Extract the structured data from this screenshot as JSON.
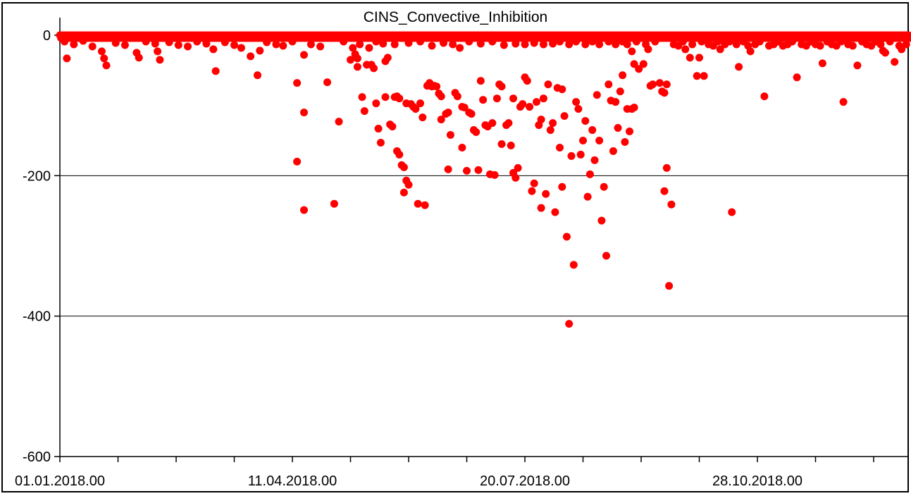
{
  "chart_data": {
    "type": "scatter",
    "title": "CINS_Convective_Inhibition",
    "marker": {
      "color": "#ff0000",
      "radius": 5.5
    },
    "background_color": "#ffffff",
    "frame_color": "#000000",
    "grid": "horizontal-only",
    "legend": "none",
    "x_axis": {
      "labels": [
        "01.01.2018.00",
        "11.04.2018.00",
        "20.07.2018.00",
        "28.10.2018.00"
      ],
      "label_days": [
        0,
        100,
        200,
        300
      ],
      "minor_tick_interval_days": 25,
      "range_days": [
        0,
        365
      ]
    },
    "y_axis": {
      "tick_labels": [
        "0",
        "-200",
        "-400",
        "-600"
      ],
      "ticks": [
        0,
        -200,
        -400,
        -600
      ],
      "gridlines": [
        -200,
        -400
      ],
      "range": [
        -600,
        0
      ]
    },
    "zero_band": {
      "note": "continuous dense row of overlapping points at ~0 for the whole period",
      "day_start": 0,
      "day_end": 365,
      "step_days": 1,
      "row_values": [
        0,
        -4
      ]
    },
    "points": [
      [
        2,
        -9
      ],
      [
        3,
        -33
      ],
      [
        6,
        -13
      ],
      [
        10,
        -8
      ],
      [
        14,
        -16
      ],
      [
        18,
        -23
      ],
      [
        19,
        -33
      ],
      [
        20,
        -43
      ],
      [
        24,
        -11
      ],
      [
        28,
        -14
      ],
      [
        33,
        -25
      ],
      [
        34,
        -32
      ],
      [
        37,
        -9
      ],
      [
        41,
        -12
      ],
      [
        42,
        -23
      ],
      [
        43,
        -35
      ],
      [
        47,
        -10
      ],
      [
        51,
        -14
      ],
      [
        55,
        -16
      ],
      [
        59,
        -9
      ],
      [
        63,
        -12
      ],
      [
        66,
        -20
      ],
      [
        67,
        -51
      ],
      [
        71,
        -10
      ],
      [
        75,
        -14
      ],
      [
        78,
        -18
      ],
      [
        82,
        -30
      ],
      [
        85,
        -57
      ],
      [
        86,
        -22
      ],
      [
        89,
        -10
      ],
      [
        93,
        -13
      ],
      [
        96,
        -15
      ],
      [
        100,
        -9
      ],
      [
        102,
        -68
      ],
      [
        102,
        -180
      ],
      [
        105,
        -28
      ],
      [
        105,
        -110
      ],
      [
        105,
        -249
      ],
      [
        108,
        -13
      ],
      [
        112,
        -16
      ],
      [
        115,
        -67
      ],
      [
        118,
        -240
      ],
      [
        120,
        -123
      ],
      [
        122,
        -9
      ],
      [
        125,
        -35
      ],
      [
        126,
        -18
      ],
      [
        127,
        -27
      ],
      [
        128,
        -33
      ],
      [
        128,
        -45
      ],
      [
        129,
        -13
      ],
      [
        130,
        -88
      ],
      [
        131,
        -108
      ],
      [
        132,
        -42
      ],
      [
        133,
        -18
      ],
      [
        134,
        -42
      ],
      [
        135,
        -47
      ],
      [
        136,
        -97
      ],
      [
        136,
        -9
      ],
      [
        137,
        -133
      ],
      [
        138,
        -153
      ],
      [
        139,
        -12
      ],
      [
        140,
        -37
      ],
      [
        140,
        -88
      ],
      [
        141,
        -32
      ],
      [
        142,
        -127
      ],
      [
        143,
        -130
      ],
      [
        144,
        -88
      ],
      [
        144,
        -13
      ],
      [
        145,
        -87
      ],
      [
        145,
        -165
      ],
      [
        146,
        -90
      ],
      [
        146,
        -170
      ],
      [
        147,
        -185
      ],
      [
        148,
        -188
      ],
      [
        148,
        -224
      ],
      [
        149,
        -207
      ],
      [
        149,
        -97
      ],
      [
        150,
        -213
      ],
      [
        150,
        -11
      ],
      [
        151,
        -98
      ],
      [
        152,
        -102
      ],
      [
        153,
        -105
      ],
      [
        154,
        -240
      ],
      [
        155,
        -97
      ],
      [
        155,
        -9
      ],
      [
        156,
        -117
      ],
      [
        157,
        -242
      ],
      [
        158,
        -72
      ],
      [
        159,
        -68
      ],
      [
        160,
        -15
      ],
      [
        160,
        -73
      ],
      [
        161,
        -72
      ],
      [
        162,
        -73
      ],
      [
        163,
        -83
      ],
      [
        164,
        -87
      ],
      [
        164,
        -120
      ],
      [
        165,
        -11
      ],
      [
        166,
        -112
      ],
      [
        167,
        -110
      ],
      [
        167,
        -191
      ],
      [
        168,
        -142
      ],
      [
        169,
        -13
      ],
      [
        170,
        -82
      ],
      [
        171,
        -87
      ],
      [
        172,
        -18
      ],
      [
        173,
        -102
      ],
      [
        173,
        -160
      ],
      [
        174,
        -103
      ],
      [
        175,
        -193
      ],
      [
        176,
        -110
      ],
      [
        176,
        -9
      ],
      [
        177,
        -112
      ],
      [
        178,
        -135
      ],
      [
        179,
        -138
      ],
      [
        180,
        -192
      ],
      [
        181,
        -65
      ],
      [
        181,
        -12
      ],
      [
        182,
        -92
      ],
      [
        183,
        -128
      ],
      [
        184,
        -130
      ],
      [
        185,
        -198
      ],
      [
        186,
        -125
      ],
      [
        186,
        -9
      ],
      [
        187,
        -199
      ],
      [
        188,
        -90
      ],
      [
        189,
        -70
      ],
      [
        190,
        -73
      ],
      [
        190,
        -155
      ],
      [
        191,
        -14
      ],
      [
        192,
        -128
      ],
      [
        193,
        -125
      ],
      [
        194,
        -157
      ],
      [
        195,
        -90
      ],
      [
        195,
        -196
      ],
      [
        196,
        -203
      ],
      [
        196,
        -12
      ],
      [
        197,
        -189
      ],
      [
        198,
        -102
      ],
      [
        199,
        -98
      ],
      [
        200,
        -60
      ],
      [
        200,
        -13
      ],
      [
        201,
        -65
      ],
      [
        202,
        -102
      ],
      [
        203,
        -222
      ],
      [
        204,
        -211
      ],
      [
        204,
        -11
      ],
      [
        205,
        -95
      ],
      [
        206,
        -128
      ],
      [
        207,
        -120
      ],
      [
        207,
        -246
      ],
      [
        208,
        -90
      ],
      [
        208,
        -13
      ],
      [
        209,
        -226
      ],
      [
        210,
        -70
      ],
      [
        211,
        -135
      ],
      [
        212,
        -125
      ],
      [
        212,
        -12
      ],
      [
        213,
        -252
      ],
      [
        214,
        -75
      ],
      [
        215,
        -160
      ],
      [
        215,
        -9
      ],
      [
        216,
        -77
      ],
      [
        216,
        -216
      ],
      [
        217,
        -115
      ],
      [
        218,
        -287
      ],
      [
        219,
        -411
      ],
      [
        219,
        -13
      ],
      [
        220,
        -172
      ],
      [
        221,
        -327
      ],
      [
        222,
        -95
      ],
      [
        222,
        -9
      ],
      [
        223,
        -105
      ],
      [
        224,
        -170
      ],
      [
        225,
        -150
      ],
      [
        226,
        -122
      ],
      [
        226,
        -13
      ],
      [
        227,
        -230
      ],
      [
        228,
        -198
      ],
      [
        229,
        -135
      ],
      [
        229,
        -9
      ],
      [
        230,
        -178
      ],
      [
        231,
        -85
      ],
      [
        232,
        -150
      ],
      [
        232,
        -13
      ],
      [
        233,
        -264
      ],
      [
        234,
        -216
      ],
      [
        235,
        -314
      ],
      [
        236,
        -70
      ],
      [
        236,
        -9
      ],
      [
        237,
        -93
      ],
      [
        238,
        -165
      ],
      [
        239,
        -95
      ],
      [
        239,
        -13
      ],
      [
        240,
        -132
      ],
      [
        241,
        -80
      ],
      [
        242,
        -57
      ],
      [
        242,
        -9
      ],
      [
        243,
        -152
      ],
      [
        244,
        -105
      ],
      [
        244,
        -13
      ],
      [
        245,
        -137
      ],
      [
        246,
        -105
      ],
      [
        246,
        -23
      ],
      [
        247,
        -103
      ],
      [
        247,
        -41
      ],
      [
        248,
        -9
      ],
      [
        249,
        -48
      ],
      [
        251,
        -41
      ],
      [
        252,
        -13
      ],
      [
        253,
        -20
      ],
      [
        254,
        -72
      ],
      [
        255,
        -70
      ],
      [
        256,
        -9
      ],
      [
        258,
        -68
      ],
      [
        259,
        -80
      ],
      [
        260,
        -82
      ],
      [
        260,
        -222
      ],
      [
        261,
        -70
      ],
      [
        261,
        -189
      ],
      [
        262,
        -357
      ],
      [
        263,
        -241
      ],
      [
        264,
        -13
      ],
      [
        266,
        -15
      ],
      [
        268,
        -9
      ],
      [
        269,
        -20
      ],
      [
        271,
        -32
      ],
      [
        272,
        -13
      ],
      [
        274,
        -58
      ],
      [
        275,
        -32
      ],
      [
        276,
        -9
      ],
      [
        277,
        -58
      ],
      [
        279,
        -13
      ],
      [
        281,
        -15
      ],
      [
        283,
        -9
      ],
      [
        284,
        -20
      ],
      [
        286,
        -13
      ],
      [
        288,
        -9
      ],
      [
        289,
        -252
      ],
      [
        291,
        -13
      ],
      [
        292,
        -45
      ],
      [
        294,
        -9
      ],
      [
        296,
        -15
      ],
      [
        297,
        -23
      ],
      [
        299,
        -13
      ],
      [
        301,
        -9
      ],
      [
        303,
        -87
      ],
      [
        305,
        -15
      ],
      [
        307,
        -13
      ],
      [
        309,
        -9
      ],
      [
        311,
        -15
      ],
      [
        313,
        -13
      ],
      [
        315,
        -9
      ],
      [
        317,
        -60
      ],
      [
        319,
        -13
      ],
      [
        321,
        -15
      ],
      [
        323,
        -9
      ],
      [
        325,
        -13
      ],
      [
        327,
        -15
      ],
      [
        328,
        -40
      ],
      [
        330,
        -9
      ],
      [
        332,
        -13
      ],
      [
        334,
        -15
      ],
      [
        336,
        -9
      ],
      [
        337,
        -95
      ],
      [
        339,
        -13
      ],
      [
        341,
        -15
      ],
      [
        343,
        -43
      ],
      [
        345,
        -9
      ],
      [
        347,
        -13
      ],
      [
        349,
        -15
      ],
      [
        351,
        -9
      ],
      [
        353,
        -13
      ],
      [
        354,
        -22
      ],
      [
        355,
        -25
      ],
      [
        357,
        -9
      ],
      [
        359,
        -38
      ],
      [
        361,
        -15
      ],
      [
        362,
        -20
      ],
      [
        364,
        -13
      ]
    ]
  }
}
